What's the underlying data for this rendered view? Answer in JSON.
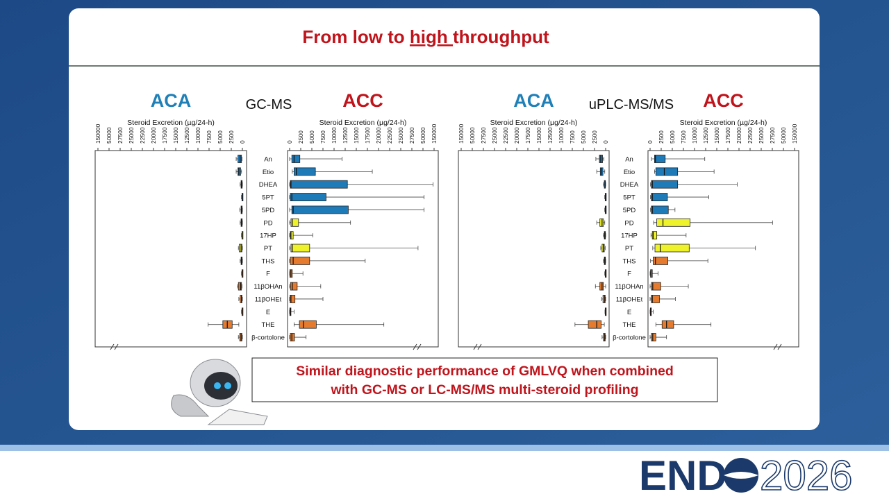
{
  "header": {
    "before": "From low to ",
    "underlined": "high ",
    "after": "throughput"
  },
  "callout": {
    "lines": [
      "Similar diagnostic performance of GMLVQ when combined",
      "with GC-MS or LC-MS/MS multi-steroid profiling"
    ]
  },
  "logo": {
    "left": "END",
    "right": "2026"
  },
  "chart_data": [
    {
      "type": "boxplot",
      "title": "GC-MS",
      "xlabel": "Steroid Excretion (µg/24-h)",
      "categories": [
        "An",
        "Etio",
        "DHEA",
        "5PT",
        "5PD",
        "PD",
        "17HP",
        "PT",
        "THS",
        "F",
        "11βOHAn",
        "11βOHEt",
        "E",
        "THE",
        "β-cortolone"
      ],
      "category_colors": [
        "#1f7ab8",
        "#1f7ab8",
        "#1f7ab8",
        "#1f7ab8",
        "#1f7ab8",
        "#eef22a",
        "#eef22a",
        "#eef22a",
        "#e57b2e",
        "#e57b2e",
        "#e57b2e",
        "#e57b2e",
        "#e57b2e",
        "#e57b2e",
        "#e57b2e"
      ],
      "xlim": [
        0,
        150000
      ],
      "xticks": [
        0,
        2500,
        5000,
        7500,
        10000,
        12500,
        15000,
        17500,
        20000,
        22500,
        25000,
        27500,
        50000,
        150000
      ],
      "series": [
        {
          "name": "ACA",
          "color": "#1f80b8",
          "direction": "reversed",
          "boxes": [
            [
              100,
              200,
              500,
              1000,
              1400
            ],
            [
              200,
              400,
              800,
              1000,
              1400
            ],
            [
              0,
              50,
              150,
              300,
              500
            ],
            [
              0,
              20,
              50,
              100,
              200
            ],
            [
              0,
              50,
              150,
              300,
              600
            ],
            [
              0,
              50,
              150,
              300,
              500
            ],
            [
              0,
              20,
              50,
              100,
              200
            ],
            [
              0,
              100,
              300,
              700,
              900
            ],
            [
              0,
              50,
              150,
              300,
              500
            ],
            [
              0,
              20,
              50,
              100,
              200
            ],
            [
              100,
              200,
              400,
              900,
              1100
            ],
            [
              0,
              100,
              200,
              500,
              800
            ],
            [
              0,
              20,
              50,
              100,
              200
            ],
            [
              800,
              2300,
              3400,
              4400,
              7700
            ],
            [
              0,
              100,
              300,
              600,
              900
            ]
          ]
        },
        {
          "name": "ACC",
          "color": "#c0141c",
          "direction": "normal",
          "boxes": [
            [
              0,
              500,
              1000,
              2300,
              11800
            ],
            [
              600,
              1000,
              1500,
              5800,
              18600
            ],
            [
              0,
              150,
              300,
              13000,
              140000
            ],
            [
              0,
              150,
              500,
              8200,
              60000
            ],
            [
              0,
              500,
              800,
              13200,
              60000
            ],
            [
              0,
              300,
              600,
              2000,
              13700
            ],
            [
              0,
              150,
              300,
              800,
              5200
            ],
            [
              0,
              300,
              600,
              4500,
              40000
            ],
            [
              0,
              150,
              800,
              4500,
              17000
            ],
            [
              0,
              50,
              300,
              600,
              3000
            ],
            [
              0,
              200,
              600,
              1700,
              7000
            ],
            [
              0,
              100,
              300,
              1200,
              7500
            ],
            [
              0,
              50,
              150,
              300,
              1000
            ],
            [
              1000,
              2200,
              3100,
              6000,
              21200
            ],
            [
              0,
              150,
              500,
              1100,
              3700
            ]
          ]
        }
      ]
    },
    {
      "type": "boxplot",
      "title": "uPLC-MS/MS",
      "xlabel": "Steroid Excretion (µg/24-h)",
      "categories": [
        "An",
        "Etio",
        "DHEA",
        "5PT",
        "5PD",
        "PD",
        "17HP",
        "PT",
        "THS",
        "F",
        "11βOHAn",
        "11βOHEt",
        "E",
        "THE",
        "β-cortolone"
      ],
      "category_colors": [
        "#1f7ab8",
        "#1f7ab8",
        "#1f7ab8",
        "#1f7ab8",
        "#1f7ab8",
        "#eef22a",
        "#eef22a",
        "#eef22a",
        "#e57b2e",
        "#e57b2e",
        "#e57b2e",
        "#e57b2e",
        "#e57b2e",
        "#e57b2e",
        "#e57b2e"
      ],
      "xlim": [
        0,
        150000
      ],
      "xticks": [
        0,
        2500,
        5000,
        7500,
        10000,
        12500,
        15000,
        17500,
        20000,
        22500,
        25000,
        27500,
        50000,
        150000
      ],
      "series": [
        {
          "name": "ACA",
          "color": "#1f80b8",
          "direction": "reversed",
          "boxes": [
            [
              400,
              700,
              1100,
              1400,
              2200
            ],
            [
              200,
              600,
              1000,
              1200,
              2000
            ],
            [
              0,
              50,
              100,
              300,
              500
            ],
            [
              0,
              20,
              50,
              100,
              200
            ],
            [
              0,
              20,
              50,
              100,
              200
            ],
            [
              200,
              500,
              800,
              1300,
              2000
            ],
            [
              0,
              50,
              150,
              300,
              500
            ],
            [
              100,
              300,
              500,
              800,
              1100
            ],
            [
              0,
              50,
              150,
              300,
              500
            ],
            [
              0,
              20,
              50,
              100,
              200
            ],
            [
              0,
              500,
              800,
              1300,
              2300
            ],
            [
              0,
              100,
              200,
              600,
              900
            ],
            [
              0,
              20,
              50,
              100,
              150
            ],
            [
              300,
              1000,
              2000,
              3900,
              6900
            ],
            [
              0,
              100,
              200,
              500,
              800
            ]
          ]
        },
        {
          "name": "ACC",
          "color": "#c0141c",
          "direction": "normal",
          "boxes": [
            [
              300,
              1000,
              1200,
              3400,
              12300
            ],
            [
              1000,
              1300,
              3200,
              6200,
              14400
            ],
            [
              100,
              300,
              500,
              6200,
              19600
            ],
            [
              100,
              300,
              500,
              3900,
              13200
            ],
            [
              100,
              300,
              500,
              4100,
              5600
            ],
            [
              800,
              1500,
              2900,
              9000,
              28000
            ],
            [
              200,
              500,
              700,
              1500,
              8100
            ],
            [
              600,
              1100,
              2300,
              8800,
              23700
            ],
            [
              100,
              700,
              1200,
              4000,
              13000
            ],
            [
              0,
              100,
              200,
              500,
              1800
            ],
            [
              0,
              300,
              600,
              2400,
              8600
            ],
            [
              0,
              300,
              500,
              2100,
              5700
            ],
            [
              0,
              50,
              100,
              300,
              700
            ],
            [
              1300,
              2700,
              3700,
              5300,
              13700
            ],
            [
              0,
              300,
              600,
              1300,
              3700
            ]
          ]
        }
      ]
    }
  ]
}
